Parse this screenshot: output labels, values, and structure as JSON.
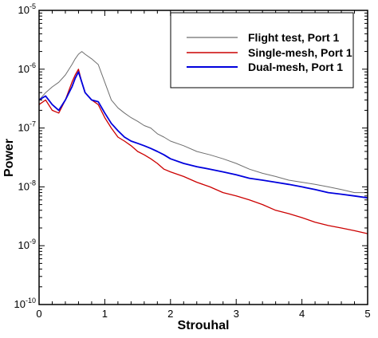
{
  "chart_data": {
    "type": "line",
    "xlabel": "Strouhal",
    "ylabel": "Power",
    "xlim": [
      0,
      5
    ],
    "ylim": [
      1e-10,
      1e-05
    ],
    "yscale": "log",
    "grid": false,
    "legend_position": "top-right",
    "x_ticks": [
      {
        "value": 0,
        "label": "0"
      },
      {
        "value": 1,
        "label": "1"
      },
      {
        "value": 2,
        "label": "2"
      },
      {
        "value": 3,
        "label": "3"
      },
      {
        "value": 4,
        "label": "4"
      },
      {
        "value": 5,
        "label": "5"
      }
    ],
    "y_ticks": [
      {
        "value": 1e-05,
        "base": "10",
        "exp": "-5"
      },
      {
        "value": 1e-06,
        "base": "10",
        "exp": "-6"
      },
      {
        "value": 1e-07,
        "base": "10",
        "exp": "-7"
      },
      {
        "value": 1e-08,
        "base": "10",
        "exp": "-8"
      },
      {
        "value": 1e-09,
        "base": "10",
        "exp": "-9"
      },
      {
        "value": 1e-10,
        "base": "10",
        "exp": "-10"
      }
    ],
    "series": [
      {
        "name": "Flight test, Port 1",
        "color": "#6e6e6e",
        "x": [
          0,
          0.1,
          0.2,
          0.3,
          0.4,
          0.5,
          0.55,
          0.6,
          0.65,
          0.7,
          0.8,
          0.9,
          1.0,
          1.1,
          1.2,
          1.3,
          1.4,
          1.5,
          1.6,
          1.7,
          1.8,
          1.9,
          2.0,
          2.2,
          2.4,
          2.6,
          2.8,
          3.0,
          3.2,
          3.4,
          3.6,
          3.8,
          4.0,
          4.2,
          4.4,
          4.6,
          4.8,
          5.0
        ],
        "y": [
          3e-07,
          4e-07,
          5e-07,
          6e-07,
          8e-07,
          1.2e-06,
          1.5e-06,
          1.8e-06,
          2e-06,
          1.8e-06,
          1.5e-06,
          1.2e-06,
          6e-07,
          3e-07,
          2.2e-07,
          1.8e-07,
          1.5e-07,
          1.3e-07,
          1.1e-07,
          1e-07,
          8e-08,
          7e-08,
          6e-08,
          5e-08,
          4e-08,
          3.5e-08,
          3e-08,
          2.5e-08,
          2e-08,
          1.7e-08,
          1.5e-08,
          1.3e-08,
          1.2e-08,
          1.1e-08,
          1e-08,
          9e-09,
          8e-09,
          8e-09
        ]
      },
      {
        "name": "Single-mesh, Port 1",
        "color": "#cc0000",
        "x": [
          0,
          0.1,
          0.2,
          0.3,
          0.4,
          0.5,
          0.55,
          0.6,
          0.65,
          0.7,
          0.8,
          0.9,
          1.0,
          1.1,
          1.2,
          1.3,
          1.4,
          1.5,
          1.6,
          1.7,
          1.8,
          1.9,
          2.0,
          2.2,
          2.4,
          2.6,
          2.8,
          3.0,
          3.2,
          3.4,
          3.6,
          3.8,
          4.0,
          4.2,
          4.4,
          4.6,
          4.8,
          5.0
        ],
        "y": [
          2.5e-07,
          3e-07,
          2e-07,
          1.8e-07,
          3e-07,
          6e-07,
          8e-07,
          1e-06,
          6e-07,
          4e-07,
          3e-07,
          2.5e-07,
          1.5e-07,
          1e-07,
          7e-08,
          6e-08,
          5e-08,
          4e-08,
          3.5e-08,
          3e-08,
          2.5e-08,
          2e-08,
          1.8e-08,
          1.5e-08,
          1.2e-08,
          1e-08,
          8e-09,
          7e-09,
          6e-09,
          5e-09,
          4e-09,
          3.5e-09,
          3e-09,
          2.5e-09,
          2.2e-09,
          2e-09,
          1.8e-09,
          1.6e-09
        ]
      },
      {
        "name": "Dual-mesh, Port 1",
        "color": "#0000dd",
        "x": [
          0,
          0.1,
          0.2,
          0.3,
          0.4,
          0.5,
          0.55,
          0.6,
          0.65,
          0.7,
          0.8,
          0.9,
          1.0,
          1.1,
          1.2,
          1.3,
          1.4,
          1.5,
          1.6,
          1.7,
          1.8,
          1.9,
          2.0,
          2.2,
          2.4,
          2.6,
          2.8,
          3.0,
          3.2,
          3.4,
          3.6,
          3.8,
          4.0,
          4.2,
          4.4,
          4.6,
          4.8,
          5.0
        ],
        "y": [
          3e-07,
          3.5e-07,
          2.5e-07,
          2e-07,
          3e-07,
          5e-07,
          7e-07,
          9e-07,
          6e-07,
          4e-07,
          3e-07,
          2.8e-07,
          1.8e-07,
          1.2e-07,
          9e-08,
          7e-08,
          6e-08,
          5.5e-08,
          5e-08,
          4.5e-08,
          4e-08,
          3.5e-08,
          3e-08,
          2.5e-08,
          2.2e-08,
          2e-08,
          1.8e-08,
          1.6e-08,
          1.4e-08,
          1.3e-08,
          1.2e-08,
          1.1e-08,
          1e-08,
          9e-09,
          8e-09,
          7.5e-09,
          7e-09,
          6.5e-09
        ]
      }
    ]
  }
}
